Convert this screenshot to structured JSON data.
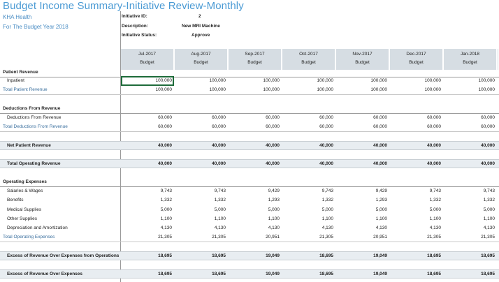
{
  "title": "Budget Income Summary-Initiative Review-Monthly",
  "org": "KHA Health",
  "year_label": "For The Budget Year 2018",
  "initiative": {
    "id_label": "Initiative ID:",
    "id_value": "2",
    "desc_label": "Description:",
    "desc_value": "New MRI Machine",
    "status_label": "Initiative Status:",
    "status_value": "Approve"
  },
  "columns": [
    {
      "month": "Jul-2017",
      "sub": "Budget"
    },
    {
      "month": "Aug-2017",
      "sub": "Budget"
    },
    {
      "month": "Sep-2017",
      "sub": "Budget"
    },
    {
      "month": "Oct-2017",
      "sub": "Budget"
    },
    {
      "month": "Nov-2017",
      "sub": "Budget"
    },
    {
      "month": "Dec-2017",
      "sub": "Budget"
    },
    {
      "month": "Jan-2018",
      "sub": "Budget"
    }
  ],
  "rows": {
    "patient_revenue": {
      "label": "Patient Revenue"
    },
    "inpatient": {
      "label": "Inpatient",
      "values": [
        "100,000",
        "100,000",
        "100,000",
        "100,000",
        "100,000",
        "100,000",
        "100,000"
      ]
    },
    "total_patient_revenue": {
      "label": "Total Patient Revenue",
      "values": [
        "100,000",
        "100,000",
        "100,000",
        "100,000",
        "100,000",
        "100,000",
        "100,000"
      ]
    },
    "deductions_from_revenue": {
      "label": "Deductions From Revenue"
    },
    "deductions": {
      "label": "Deductions From Revenue",
      "values": [
        "60,000",
        "60,000",
        "60,000",
        "60,000",
        "60,000",
        "60,000",
        "60,000"
      ]
    },
    "total_deductions": {
      "label": "Total Deductions From Revenue",
      "values": [
        "60,000",
        "60,000",
        "60,000",
        "60,000",
        "60,000",
        "60,000",
        "60,000"
      ]
    },
    "net_patient_revenue": {
      "label": "Net Patient Revenue",
      "values": [
        "40,000",
        "40,000",
        "40,000",
        "40,000",
        "40,000",
        "40,000",
        "40,000"
      ]
    },
    "total_operating_revenue": {
      "label": "Total Operating Revenue",
      "values": [
        "40,000",
        "40,000",
        "40,000",
        "40,000",
        "40,000",
        "40,000",
        "40,000"
      ]
    },
    "operating_expenses": {
      "label": "Operating Expenses"
    },
    "salaries": {
      "label": "Salaries & Wages",
      "values": [
        "9,743",
        "9,743",
        "9,429",
        "9,743",
        "9,429",
        "9,743",
        "9,743"
      ]
    },
    "benefits": {
      "label": "Benefits",
      "values": [
        "1,332",
        "1,332",
        "1,293",
        "1,332",
        "1,293",
        "1,332",
        "1,332"
      ]
    },
    "medical_supplies": {
      "label": "Medical Supplies",
      "values": [
        "5,000",
        "5,000",
        "5,000",
        "5,000",
        "5,000",
        "5,000",
        "5,000"
      ]
    },
    "other_supplies": {
      "label": "Other Supplies",
      "values": [
        "1,100",
        "1,100",
        "1,100",
        "1,100",
        "1,100",
        "1,100",
        "1,100"
      ]
    },
    "depreciation": {
      "label": "Depreciation and Amortization",
      "values": [
        "4,130",
        "4,130",
        "4,130",
        "4,130",
        "4,130",
        "4,130",
        "4,130"
      ]
    },
    "total_operating_expenses": {
      "label": "Total Operating Expenses",
      "values": [
        "21,305",
        "21,305",
        "20,951",
        "21,305",
        "20,951",
        "21,305",
        "21,305"
      ]
    },
    "excess_operations": {
      "label": "Excess of Revenue Over Expenses from Operations",
      "values": [
        "18,695",
        "18,695",
        "19,049",
        "18,695",
        "19,049",
        "18,695",
        "18,695"
      ]
    },
    "excess_total": {
      "label": "Excess of Revenue Over Expenses",
      "values": [
        "18,695",
        "18,695",
        "19,049",
        "18,695",
        "19,049",
        "18,695",
        "18,695"
      ]
    }
  }
}
